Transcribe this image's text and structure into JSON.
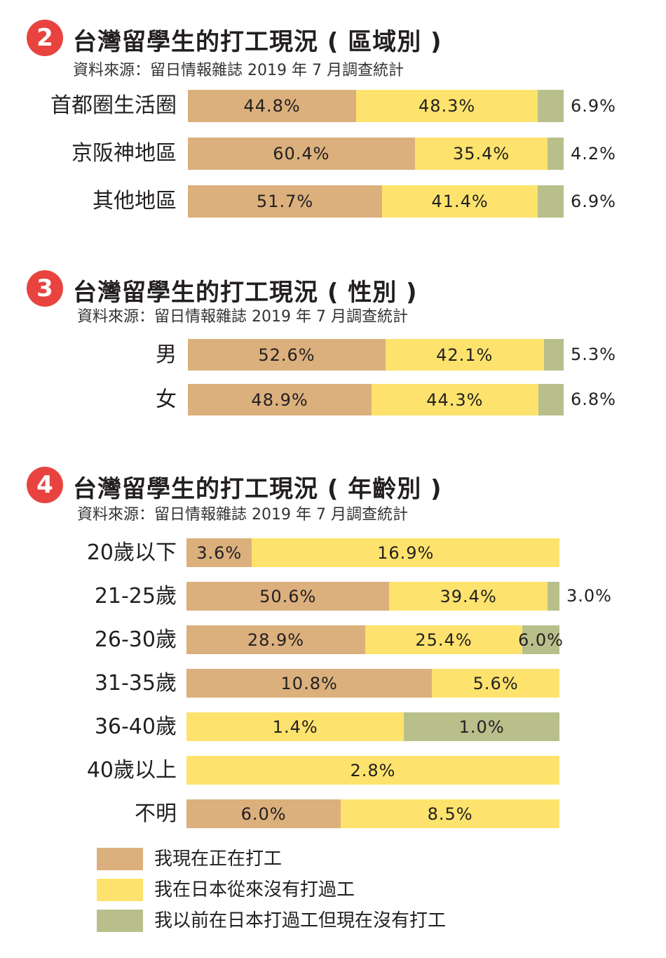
{
  "colors": {
    "badge": "#e8433f",
    "working_now": "#dbb07d",
    "never_worked": "#fde36d",
    "worked_before": "#b8bf8b"
  },
  "legend": [
    {
      "key": "working_now",
      "label": "我現在正在打工"
    },
    {
      "key": "never_worked",
      "label": "我在日本從來沒有打過工"
    },
    {
      "key": "worked_before",
      "label": "我以前在日本打過工但現在沒有打工"
    }
  ],
  "chart_data": [
    {
      "type": "bar",
      "stacked": true,
      "orientation": "horizontal",
      "number": "2",
      "title": "台灣留學生的打工現況 ( 區域別 )",
      "source": "資料來源：留日情報雜誌 2019 年 7 月調查統計",
      "categories": [
        "首都圈生活圈",
        "京阪神地區",
        "其他地區"
      ],
      "series": [
        {
          "name": "我現在正在打工",
          "values": [
            44.8,
            60.4,
            51.7
          ],
          "labels": [
            "44.8%",
            "60.4%",
            "51.7%"
          ]
        },
        {
          "name": "我在日本從來沒有打過工",
          "values": [
            48.3,
            35.4,
            41.4
          ],
          "labels": [
            "48.3%",
            "35.4%",
            "41.4%"
          ]
        },
        {
          "name": "我以前在日本打過工但現在沒有打工",
          "values": [
            6.9,
            4.2,
            6.9
          ],
          "labels": [
            "6.9%",
            "4.2%",
            "6.9%"
          ]
        }
      ],
      "label_outside_last": [
        true,
        true,
        true
      ]
    },
    {
      "type": "bar",
      "stacked": true,
      "orientation": "horizontal",
      "number": "3",
      "title": "台灣留學生的打工現況 ( 性別 )",
      "source": "資料來源：留日情報雜誌 2019 年 7 月調查統計",
      "categories": [
        "男",
        "女"
      ],
      "series": [
        {
          "name": "我現在正在打工",
          "values": [
            52.6,
            48.9
          ],
          "labels": [
            "52.6%",
            "48.9%"
          ]
        },
        {
          "name": "我在日本從來沒有打過工",
          "values": [
            42.1,
            44.3
          ],
          "labels": [
            "42.1%",
            "44.3%"
          ]
        },
        {
          "name": "我以前在日本打過工但現在沒有打工",
          "values": [
            5.3,
            6.8
          ],
          "labels": [
            "5.3%",
            "6.8%"
          ]
        }
      ],
      "label_outside_last": [
        true,
        true
      ]
    },
    {
      "type": "bar",
      "stacked": true,
      "orientation": "horizontal",
      "number": "4",
      "title": "台灣留學生的打工現況 ( 年齡別 )",
      "source": "資料來源：留日情報雜誌 2019 年 7 月調查統計",
      "categories": [
        "20歲以下",
        "21-25歲",
        "26-30歲",
        "31-35歲",
        "36-40歲",
        "40歲以上",
        "不明"
      ],
      "series": [
        {
          "name": "我現在正在打工",
          "values": [
            3.6,
            50.6,
            28.9,
            10.8,
            0,
            0,
            6.0
          ],
          "labels": [
            "3.6%",
            "50.6%",
            "28.9%",
            "10.8%",
            "",
            "",
            "6.0%"
          ]
        },
        {
          "name": "我在日本從來沒有打過工",
          "values": [
            16.9,
            39.4,
            25.4,
            5.6,
            1.4,
            2.8,
            8.5
          ],
          "labels": [
            "16.9%",
            "39.4%",
            "25.4%",
            "5.6%",
            "1.4%",
            "2.8%",
            "8.5%"
          ]
        },
        {
          "name": "我以前在日本打過工但現在沒有打工",
          "values": [
            0,
            3.0,
            6.0,
            0,
            1.0,
            0,
            0
          ],
          "labels": [
            "",
            "3.0%",
            "6.0%",
            "",
            "1.0%",
            "",
            ""
          ]
        }
      ],
      "label_outside_last": [
        false,
        true,
        false,
        false,
        false,
        false,
        false
      ]
    }
  ]
}
